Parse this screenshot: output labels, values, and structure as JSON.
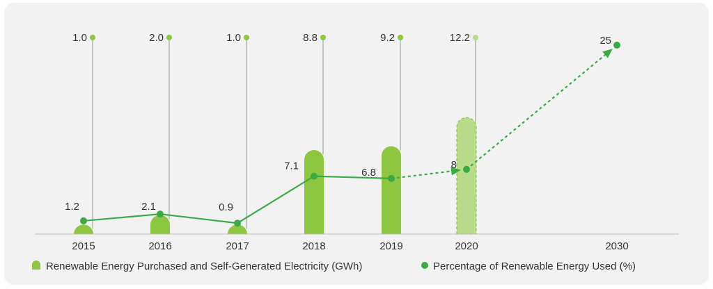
{
  "chart_data": {
    "type": "bar",
    "categories": [
      "2015",
      "2016",
      "2017",
      "2018",
      "2019",
      "2020",
      "2030"
    ],
    "series": [
      {
        "name": "Renewable Energy Purchased and Self-Generated Electricity (GWh)",
        "kind": "bar",
        "values": [
          1.0,
          2.0,
          1.0,
          8.8,
          9.2,
          12.2,
          null
        ],
        "value_labels": [
          "1.0",
          "2.0",
          "1.0",
          "8.8",
          "9.2",
          "12.2",
          ""
        ],
        "projected": [
          false,
          false,
          false,
          false,
          false,
          true,
          false
        ]
      },
      {
        "name": "Percentage of Renewable Energy Used (%)",
        "kind": "line",
        "values": [
          1.2,
          2.1,
          0.9,
          7.1,
          6.8,
          8,
          25
        ],
        "value_labels": [
          "1.2",
          "2.1",
          "0.9",
          "7.1",
          "6.8",
          "8",
          "25"
        ],
        "projected_from_index": 4
      }
    ],
    "legend_position": "bottom",
    "colors": {
      "bar": "#8dc63f",
      "bar_projected": "#b8dc8a",
      "line": "#3aaa45",
      "stem": "#b3b3b3",
      "background": "#f2f2f2"
    }
  }
}
